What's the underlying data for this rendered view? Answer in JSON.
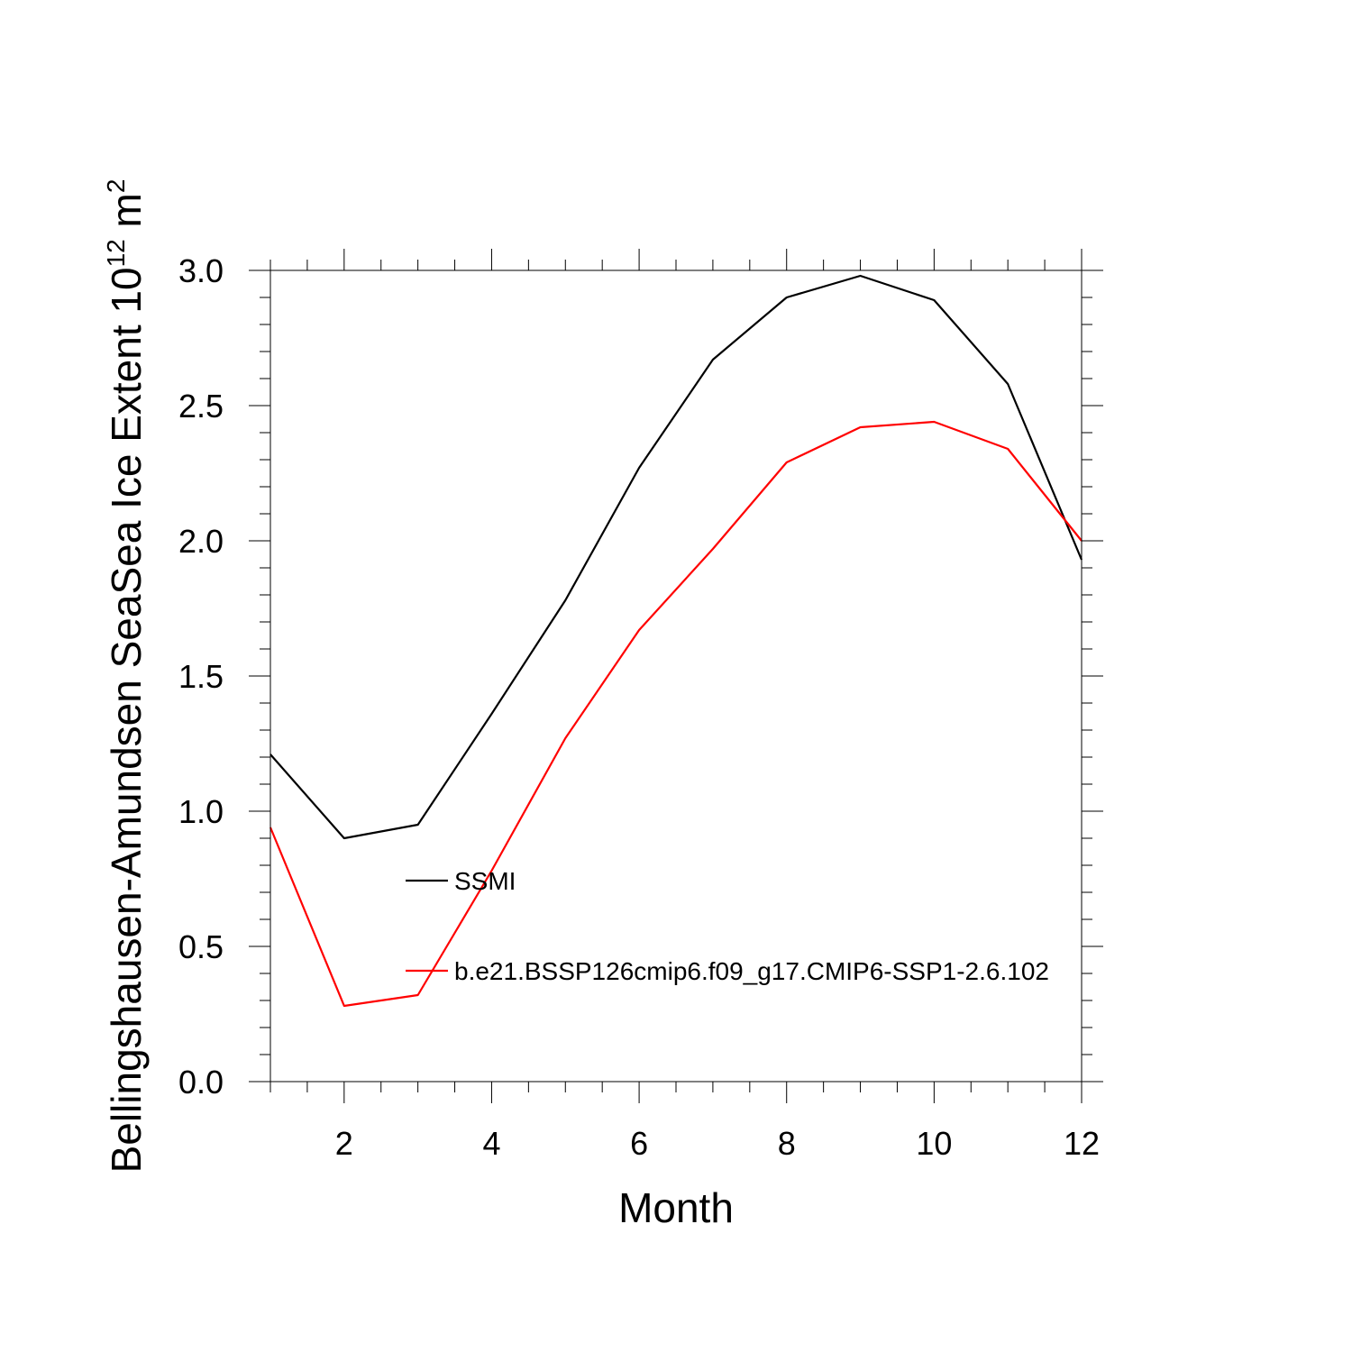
{
  "chart_data": {
    "type": "line",
    "xlabel": "Month",
    "ylabel_main": "Bellingshausen-Amundsen SeaSea Ice Extent 10",
    "ylabel_exponent": "12",
    "ylabel_unit": " m",
    "ylabel_unit_exponent": "2",
    "xlim": [
      1,
      12
    ],
    "ylim": [
      0,
      3
    ],
    "xticks": [
      2,
      4,
      6,
      8,
      10,
      12
    ],
    "xtick_labels": [
      "2",
      "4",
      "6",
      "8",
      "10",
      "12"
    ],
    "yticks": [
      0,
      0.5,
      1,
      1.5,
      2,
      2.5,
      3
    ],
    "ytick_labels": [
      "0.0",
      "0.5",
      "1.0",
      "1.5",
      "2.0",
      "2.5",
      "3.0"
    ],
    "grid": false,
    "legend_position": "inside, lower-left",
    "x": [
      1,
      2,
      3,
      4,
      5,
      6,
      7,
      8,
      9,
      10,
      11,
      12
    ],
    "series": [
      {
        "name": "SSMI",
        "color": "#000000",
        "values": [
          1.21,
          0.9,
          0.95,
          1.36,
          1.78,
          2.27,
          2.67,
          2.9,
          2.98,
          2.89,
          2.58,
          1.93
        ]
      },
      {
        "name": "b.e21.BSSP126cmip6.f09_g17.CMIP6-SSP1-2.6.102",
        "color": "#ff0000",
        "values": [
          0.94,
          0.28,
          0.32,
          0.78,
          1.27,
          1.67,
          1.97,
          2.29,
          2.42,
          2.44,
          2.34,
          2.0
        ]
      }
    ]
  }
}
